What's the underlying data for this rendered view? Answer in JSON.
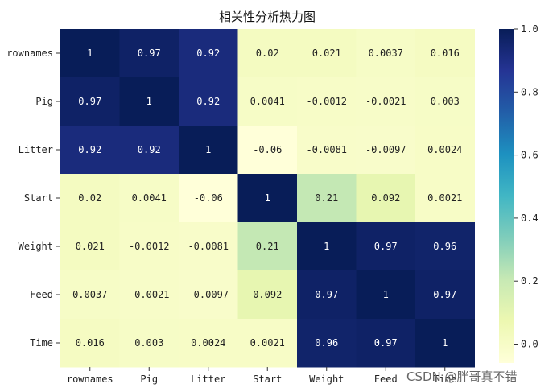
{
  "chart_data": {
    "type": "heatmap",
    "title": "相关性分析热力图",
    "x_categories": [
      "rownames",
      "Pig",
      "Litter",
      "Start",
      "Weight",
      "Feed",
      "Time"
    ],
    "y_categories": [
      "rownames",
      "Pig",
      "Litter",
      "Start",
      "Weight",
      "Feed",
      "Time"
    ],
    "values": [
      [
        1,
        0.97,
        0.92,
        0.02,
        0.021,
        0.0037,
        0.016
      ],
      [
        0.97,
        1,
        0.92,
        0.0041,
        -0.0012,
        -0.0021,
        0.003
      ],
      [
        0.92,
        0.92,
        1,
        -0.06,
        -0.0081,
        -0.0097,
        0.0024
      ],
      [
        0.02,
        0.0041,
        -0.06,
        1,
        0.21,
        0.092,
        0.0021
      ],
      [
        0.021,
        -0.0012,
        -0.0081,
        0.21,
        1,
        0.97,
        0.96
      ],
      [
        0.0037,
        -0.0021,
        -0.0097,
        0.092,
        0.97,
        1,
        0.97
      ],
      [
        0.016,
        0.003,
        0.0024,
        0.0021,
        0.96,
        0.97,
        1
      ]
    ],
    "colormap": "YlGnBu",
    "vmin": -0.06,
    "vmax": 1.0,
    "colorbar_ticks": [
      "0.0",
      "0.2",
      "0.4",
      "0.6",
      "0.8",
      "1.0"
    ],
    "colorbar_tick_values": [
      0,
      0.2,
      0.4,
      0.6,
      0.8,
      1.0
    ]
  },
  "watermark": "CSDN @胖哥真不错"
}
